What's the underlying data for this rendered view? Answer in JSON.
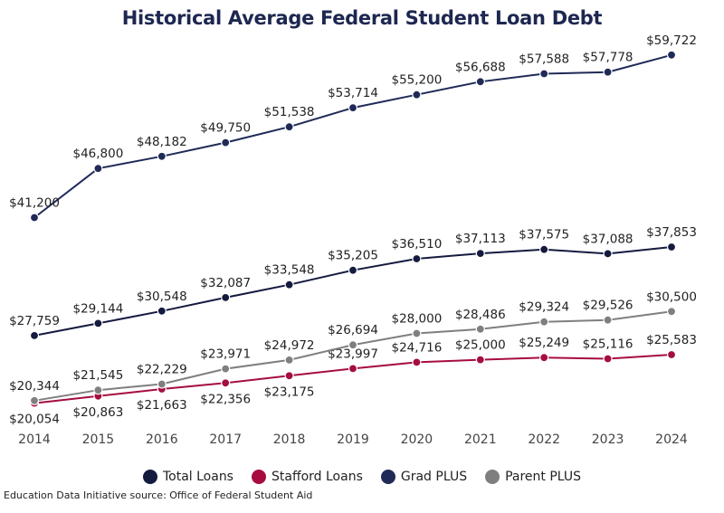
{
  "chart_data": {
    "type": "line",
    "title": "Historical Average Federal Student Loan Debt",
    "x": [
      "2014",
      "2015",
      "2016",
      "2017",
      "2018",
      "2019",
      "2020",
      "2021",
      "2022",
      "2023",
      "2024"
    ],
    "ylim": [
      20000,
      60000
    ],
    "grid": false,
    "legend_position": "bottom",
    "series": [
      {
        "name": "Total Loans",
        "color": "#151a3f",
        "values": [
          27759,
          29144,
          30548,
          32087,
          33548,
          35205,
          36510,
          37113,
          37575,
          37088,
          37853
        ],
        "labels": [
          "$27,759",
          "$29,144",
          "$30,548",
          "$32,087",
          "$33,548",
          "$35,205",
          "$36,510",
          "$37,113",
          "$37,575",
          "$37,088",
          "$37,853"
        ]
      },
      {
        "name": "Stafford Loans",
        "color": "#a60d3e",
        "values": [
          20054,
          20863,
          21663,
          22356,
          23175,
          23997,
          24716,
          25000,
          25249,
          25116,
          25583
        ],
        "labels": [
          "$20,054",
          "$20,863",
          "$21,663",
          "$22,356",
          "$23,175",
          "$23,997",
          "$24,716",
          "$25,000",
          "$25,249",
          "$25,116",
          "$25,583"
        ]
      },
      {
        "name": "Grad PLUS",
        "color": "#1f2a57",
        "values": [
          41200,
          46800,
          48182,
          49750,
          51538,
          53714,
          55200,
          56688,
          57588,
          57778,
          59722
        ],
        "labels": [
          "$41,200",
          "$46,800",
          "$48,182",
          "$49,750",
          "$51,538",
          "$53,714",
          "$55,200",
          "$56,688",
          "$57,588",
          "$57,778",
          "$59,722"
        ]
      },
      {
        "name": "Parent PLUS",
        "color": "#7f7f7f",
        "values": [
          20344,
          21545,
          22229,
          23971,
          24972,
          26694,
          28000,
          28486,
          29324,
          29526,
          30500
        ],
        "labels": [
          "$20,344",
          "$21,545",
          "$22,229",
          "$23,971",
          "$24,972",
          "$26,694",
          "$28,000",
          "$28,486",
          "$29,324",
          "$29,526",
          "$30,500"
        ]
      }
    ]
  },
  "source_note": "Education Data Initiative source: Office of Federal Student Aid"
}
